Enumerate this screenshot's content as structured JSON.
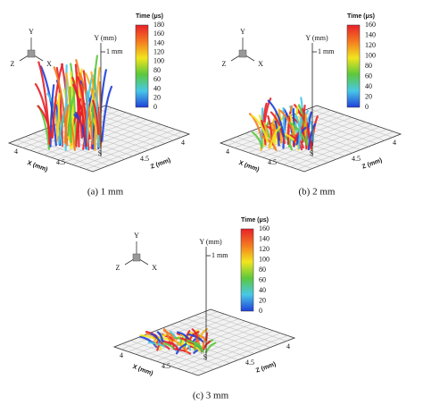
{
  "panels": [
    {
      "caption": "(a) 1 mm",
      "colorbar": {
        "title": "Time (μs)",
        "ticks": [
          "180",
          "160",
          "140",
          "120",
          "100",
          "80",
          "60",
          "40",
          "20",
          "0"
        ]
      },
      "axes": {
        "y": "Y (mm)",
        "y_mark": "1 mm",
        "x": "X (mm)",
        "z": "Z (mm)",
        "x_ticks": [
          "4",
          "4.5"
        ],
        "z_ticks": [
          "4",
          "4.5"
        ],
        "origin": "S"
      },
      "triad": {
        "y": "Y",
        "z": "Z",
        "x": "X"
      }
    },
    {
      "caption": "(b) 2 mm",
      "colorbar": {
        "title": "Time (μs)",
        "ticks": [
          "160",
          "140",
          "120",
          "100",
          "80",
          "60",
          "40",
          "20",
          "0"
        ]
      },
      "axes": {
        "y": "Y (mm)",
        "y_mark": "1 mm",
        "x": "X (mm)",
        "z": "Z (mm)",
        "x_ticks": [
          "4",
          "4.5"
        ],
        "z_ticks": [
          "4",
          "4.5"
        ],
        "origin": "S"
      },
      "triad": {
        "y": "Y",
        "z": "Z",
        "x": "X"
      }
    },
    {
      "caption": "(c) 3 mm",
      "colorbar": {
        "title": "Time (μs)",
        "ticks": [
          "160",
          "140",
          "120",
          "100",
          "80",
          "60",
          "40",
          "20",
          "0"
        ]
      },
      "axes": {
        "y": "Y (mm)",
        "y_mark": "1 mm",
        "x": "X (mm)",
        "z": "Z (mm)",
        "x_ticks": [
          "4",
          "4.5"
        ],
        "z_ticks": [
          "4",
          "4.5"
        ],
        "origin": "S"
      },
      "triad": {
        "y": "Y",
        "z": "Z",
        "x": "X"
      }
    }
  ]
}
